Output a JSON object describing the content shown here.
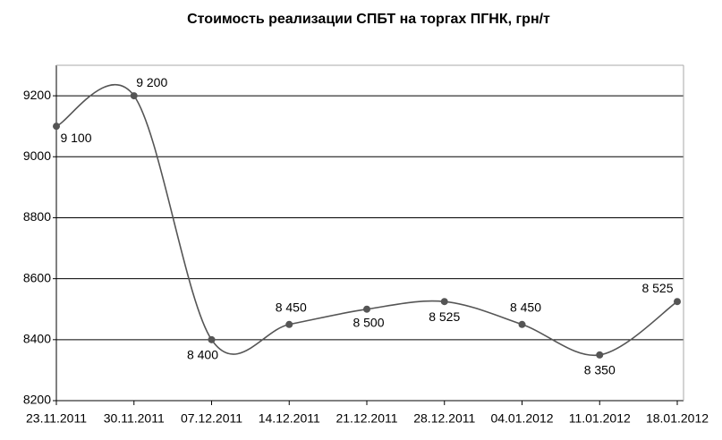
{
  "chart_data": {
    "type": "line",
    "title": "Стоимость реализации СПБТ на торгах ПГНК, грн/т",
    "categories": [
      "23.11.2011",
      "30.11.2011",
      "07.12.2011",
      "14.12.2011",
      "21.12.2011",
      "28.12.2011",
      "04.01.2012",
      "11.01.2012",
      "18.01.2012"
    ],
    "series": [
      {
        "name": "Стоимость",
        "color": "#555555",
        "values": [
          9100,
          9200,
          8400,
          8450,
          8500,
          8525,
          8450,
          8350,
          8525
        ],
        "value_labels": [
          "9 100",
          "9 200",
          "8 400",
          "8 450",
          "8 500",
          "8 525",
          "8 450",
          "8 350",
          "8 525"
        ]
      }
    ],
    "ylim": [
      8200,
      9300
    ],
    "yticks": [
      8200,
      8400,
      8600,
      8800,
      9000,
      9200
    ],
    "grid": true
  }
}
